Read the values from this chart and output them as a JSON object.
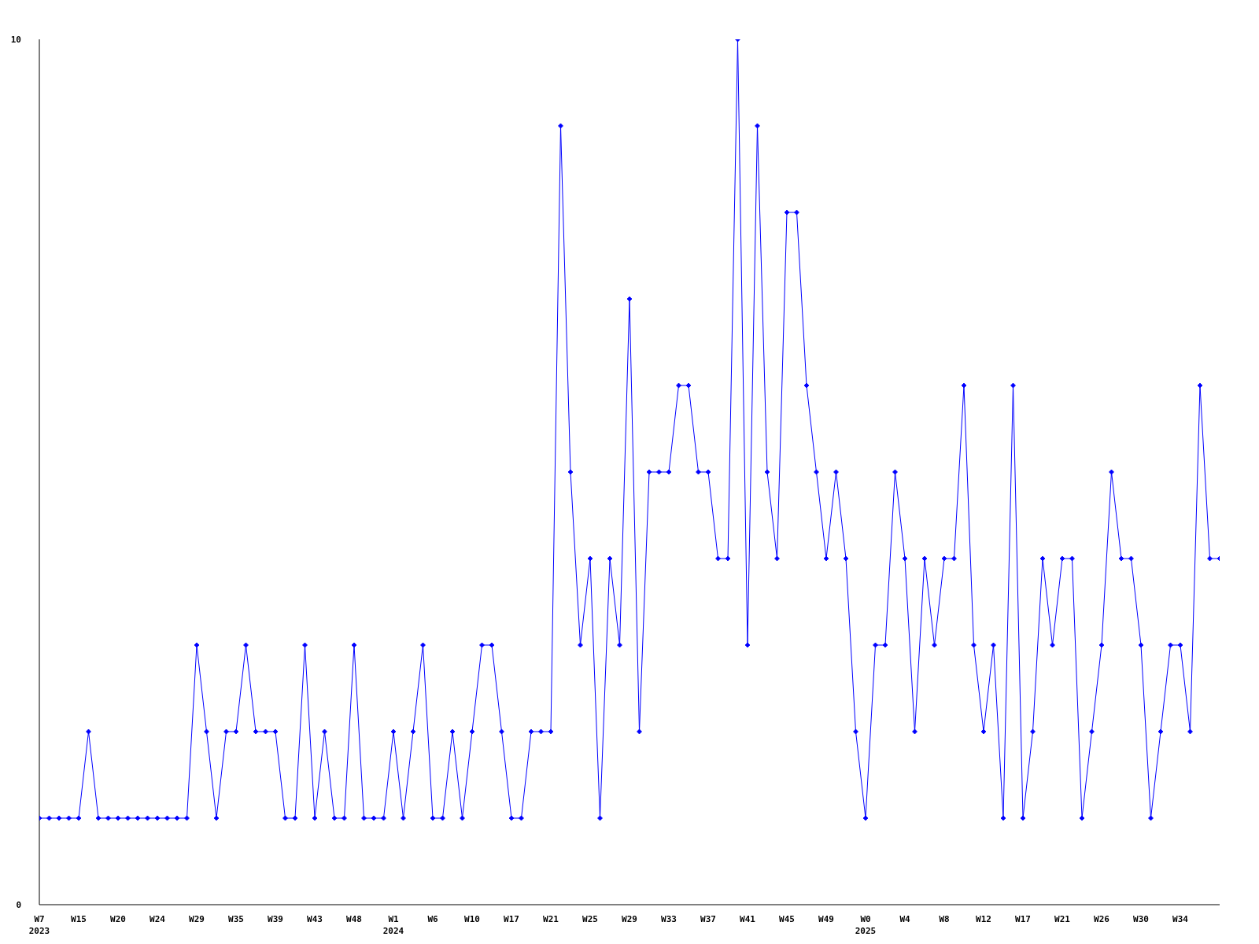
{
  "chart_data": {
    "type": "line",
    "categories": [
      "W7\n2023",
      null,
      null,
      null,
      "W15",
      null,
      null,
      null,
      "W20",
      null,
      null,
      null,
      "W24",
      null,
      null,
      null,
      "W29",
      null,
      null,
      null,
      "W35",
      null,
      null,
      null,
      "W39",
      null,
      null,
      null,
      "W43",
      null,
      null,
      null,
      "W48",
      null,
      null,
      null,
      "W1\n2024",
      null,
      null,
      null,
      "W6",
      null,
      null,
      null,
      "W10",
      null,
      null,
      null,
      "W17",
      null,
      null,
      null,
      "W21",
      null,
      null,
      null,
      "W25",
      null,
      null,
      null,
      "W29",
      null,
      null,
      null,
      "W33",
      null,
      null,
      null,
      "W37",
      null,
      null,
      null,
      "W41",
      null,
      null,
      null,
      "W45",
      null,
      null,
      null,
      "W49",
      null,
      null,
      null,
      "W0\n2025",
      null,
      null,
      null,
      "W4",
      null,
      null,
      null,
      "W8",
      null,
      null,
      null,
      "W12",
      null,
      null,
      null,
      "W17",
      null,
      null,
      null,
      "W21",
      null,
      null,
      null,
      "W26",
      null,
      null,
      null,
      "W30",
      null,
      null,
      null,
      "W34",
      null,
      null,
      null,
      null
    ],
    "values": [
      1,
      1,
      1,
      1,
      1,
      2,
      1,
      1,
      1,
      1,
      1,
      1,
      1,
      1,
      1,
      1,
      3,
      2,
      1,
      2,
      2,
      3,
      2,
      2,
      2,
      1,
      1,
      3,
      1,
      2,
      1,
      1,
      3,
      1,
      1,
      1,
      2,
      1,
      2,
      3,
      1,
      1,
      2,
      1,
      2,
      3,
      3,
      2,
      1,
      1,
      2,
      2,
      2,
      9,
      5,
      3,
      4,
      1,
      4,
      3,
      7,
      2,
      5,
      5,
      5,
      6,
      6,
      5,
      5,
      4,
      4,
      10,
      3,
      9,
      5,
      4,
      8,
      8,
      6,
      5,
      4,
      5,
      4,
      2,
      1,
      3,
      3,
      5,
      4,
      2,
      4,
      3,
      4,
      4,
      6,
      3,
      2,
      3,
      1,
      6,
      1,
      2,
      4,
      3,
      4,
      4,
      1,
      2,
      3,
      5,
      4,
      4,
      3,
      1,
      2,
      3,
      3,
      2,
      6,
      4,
      4
    ],
    "color": "#0000ff",
    "ylim": [
      0,
      10
    ],
    "yticks": [
      0,
      10
    ],
    "marker": "diamond"
  }
}
